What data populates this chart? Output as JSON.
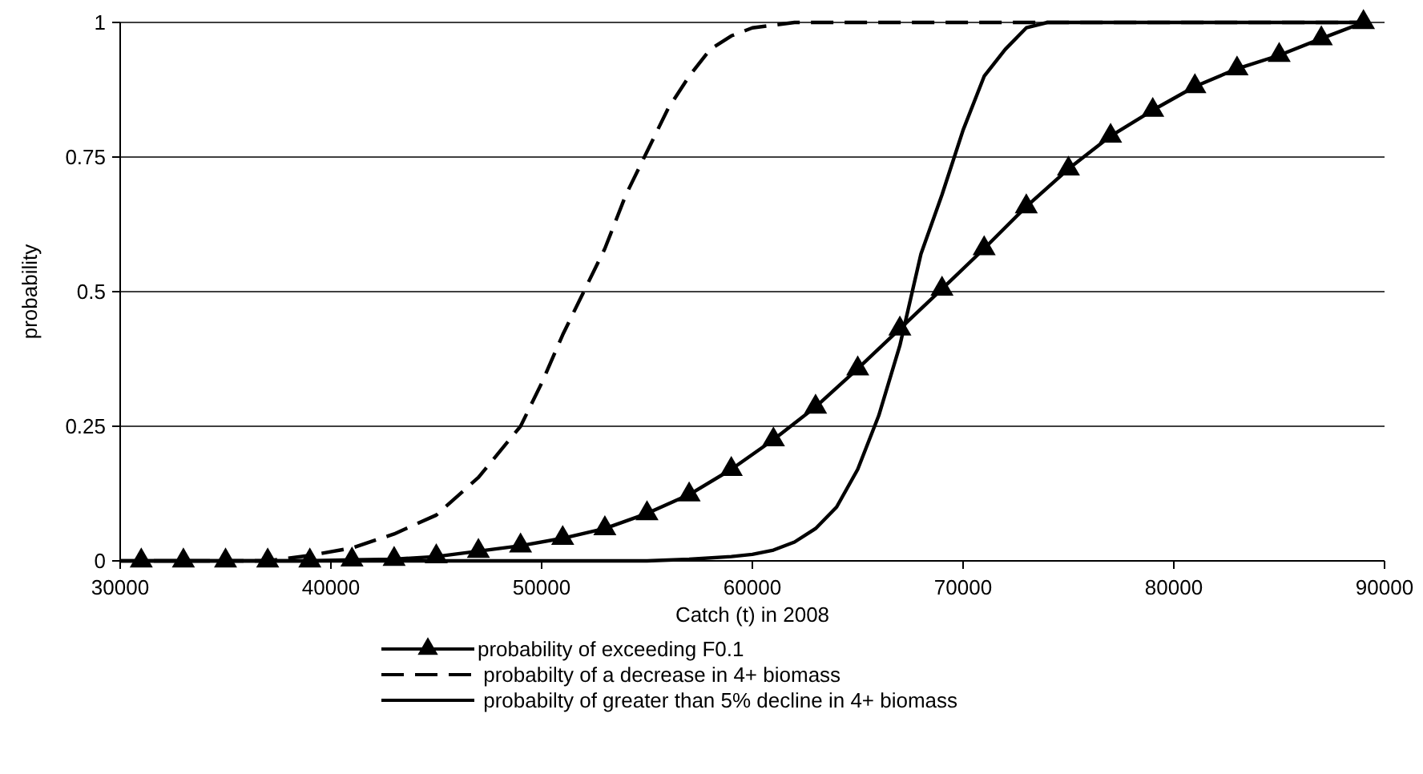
{
  "chart_data": {
    "type": "line",
    "xlabel": "Catch (t) in 2008",
    "ylabel": "probability",
    "xlim": [
      30000,
      90000
    ],
    "xticks": [
      30000,
      40000,
      50000,
      60000,
      70000,
      80000,
      90000
    ],
    "ylim": [
      0,
      1
    ],
    "yticks": [
      0,
      {
        "value": 0.25,
        "label": "0.25"
      },
      {
        "value": 0.5,
        "label": "0.5"
      },
      {
        "value": 0.75,
        "label": "0.75"
      },
      1
    ],
    "grid": "y",
    "legend": "bottom",
    "series": [
      {
        "name": "probability of exceeding F0.1",
        "color": "#000000",
        "marker": "triangle",
        "line_style": "solid",
        "x": [
          31000,
          33000,
          35000,
          37000,
          39000,
          41000,
          43000,
          45000,
          47000,
          49000,
          51000,
          53000,
          55000,
          57000,
          59000,
          61000,
          63000,
          65000,
          67000,
          69000,
          71000,
          73000,
          75000,
          77000,
          79000,
          81000,
          83000,
          85000,
          87000,
          89000
        ],
        "values": [
          0,
          0,
          0,
          0,
          0,
          0.002,
          0.003,
          0.008,
          0.018,
          0.028,
          0.042,
          0.06,
          0.088,
          0.123,
          0.17,
          0.225,
          0.286,
          0.357,
          0.431,
          0.505,
          0.58,
          0.658,
          0.728,
          0.789,
          0.837,
          0.881,
          0.914,
          0.939,
          0.97,
          1
        ]
      },
      {
        "name": " probabilty of a decrease in 4+ biomass",
        "color": "#000000",
        "marker": "none",
        "line_style": "dashed",
        "x": [
          30000,
          37000,
          39000,
          41000,
          43000,
          45000,
          47000,
          49000,
          50000,
          51000,
          52000,
          53000,
          54000,
          55000,
          56000,
          57000,
          58000,
          59000,
          60000,
          62000,
          89000
        ],
        "values": [
          0,
          0,
          0.01,
          0.024,
          0.05,
          0.085,
          0.155,
          0.25,
          0.33,
          0.42,
          0.5,
          0.58,
          0.68,
          0.76,
          0.84,
          0.9,
          0.95,
          0.975,
          0.99,
          1,
          1
        ]
      },
      {
        "name": " probabilty of greater than 5% decline in 4+ biomass",
        "color": "#000000",
        "marker": "none",
        "line_style": "solid",
        "x": [
          30000,
          55000,
          57000,
          59000,
          60000,
          61000,
          62000,
          63000,
          64000,
          65000,
          66000,
          67000,
          68000,
          69000,
          70000,
          71000,
          72000,
          73000,
          74000,
          89000
        ],
        "values": [
          0,
          0,
          0.003,
          0.008,
          0.012,
          0.02,
          0.035,
          0.06,
          0.1,
          0.17,
          0.27,
          0.4,
          0.57,
          0.68,
          0.8,
          0.9,
          0.95,
          0.99,
          1,
          1
        ]
      }
    ]
  }
}
